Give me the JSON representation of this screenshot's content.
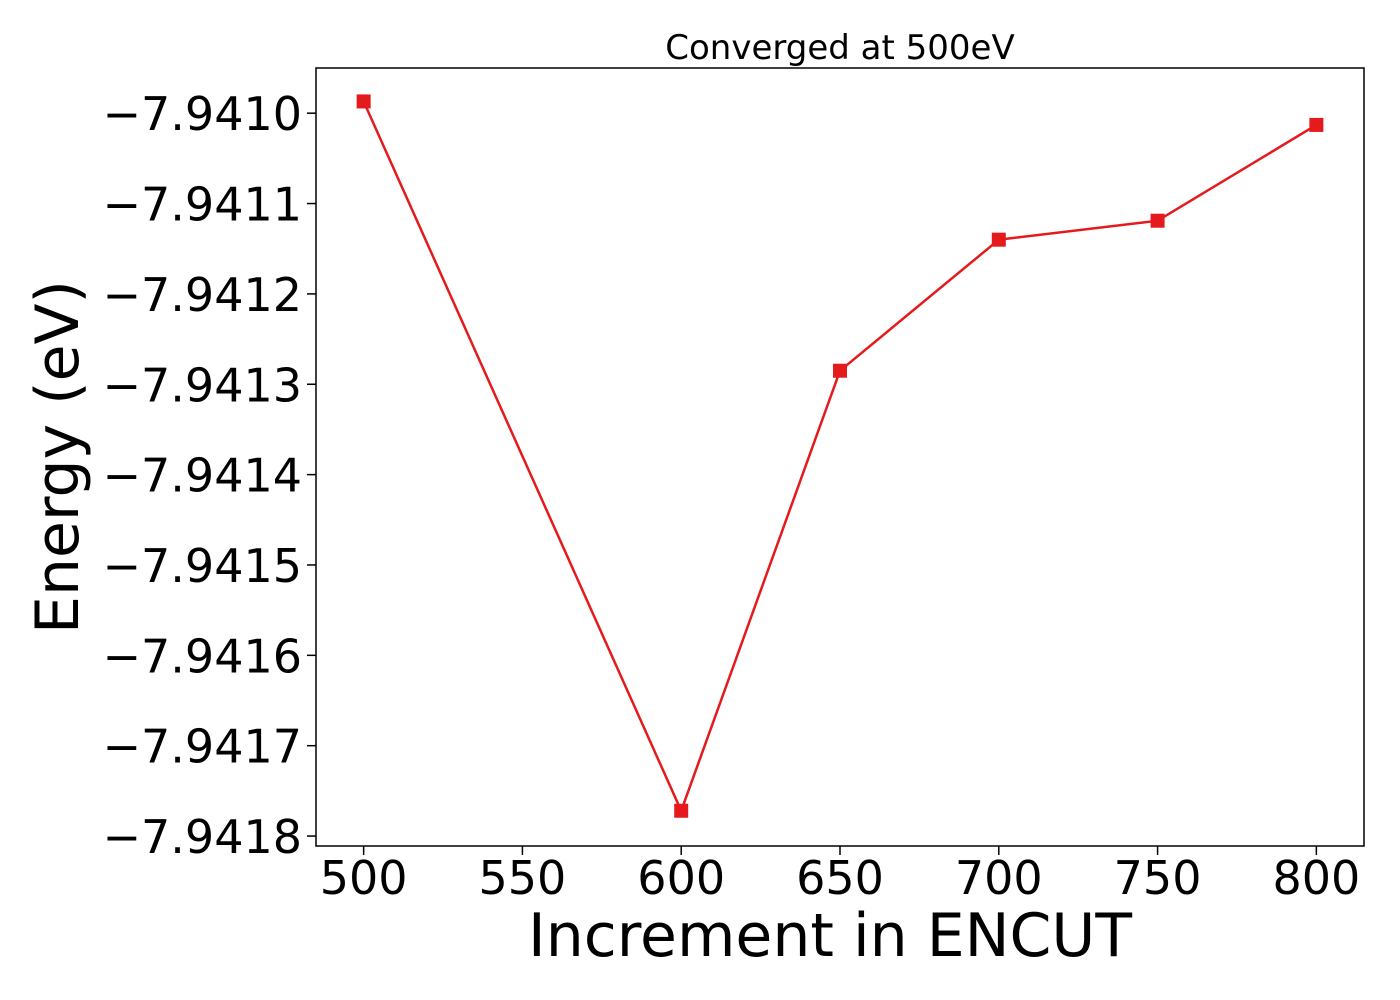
{
  "chart_data": {
    "type": "line",
    "title": "Converged at 500eV",
    "xlabel": "Increment in ENCUT",
    "ylabel": "Energy (eV)",
    "x": [
      500,
      600,
      650,
      700,
      750,
      800
    ],
    "series": [
      {
        "values": [
          -7.940987,
          -7.941772,
          -7.941285,
          -7.94114,
          -7.941119,
          -7.941013
        ]
      }
    ],
    "xlim": [
      485,
      815
    ],
    "ylim": [
      -7.941811,
      -7.94095
    ],
    "xticks": [
      500,
      550,
      600,
      650,
      700,
      750,
      800
    ],
    "xtick_labels": [
      "500",
      "550",
      "600",
      "650",
      "700",
      "750",
      "800"
    ],
    "yticks": [
      -7.941,
      -7.9411,
      -7.9412,
      -7.9413,
      -7.9414,
      -7.9415,
      -7.9416,
      -7.9417,
      -7.9418
    ],
    "ytick_labels": [
      "−7.9410",
      "−7.9411",
      "−7.9412",
      "−7.9413",
      "−7.9414",
      "−7.9415",
      "−7.9416",
      "−7.9417",
      "−7.9418"
    ],
    "grid": false,
    "line_color": "#e41a1c",
    "marker": "square"
  }
}
